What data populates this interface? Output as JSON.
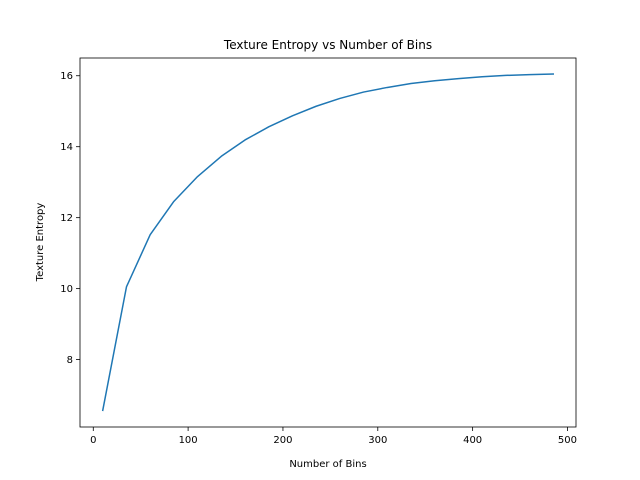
{
  "chart_data": {
    "type": "line",
    "title": "Texture Entropy vs Number of Bins",
    "xlabel": "Number of Bins",
    "ylabel": "Texture Entropy",
    "xlim": [
      -14,
      509
    ],
    "ylim": [
      6.1,
      16.5
    ],
    "x_ticks": [
      0,
      100,
      200,
      300,
      400,
      500
    ],
    "y_ticks": [
      8,
      10,
      12,
      14,
      16
    ],
    "grid": false,
    "legend": "none",
    "series": [
      {
        "color": "#1f77b4",
        "x": [
          10,
          35,
          60,
          85,
          110,
          135,
          160,
          185,
          210,
          235,
          260,
          285,
          310,
          335,
          360,
          385,
          410,
          435,
          460,
          485
        ],
        "y": [
          6.57,
          10.05,
          11.52,
          12.46,
          13.16,
          13.73,
          14.19,
          14.56,
          14.87,
          15.14,
          15.36,
          15.54,
          15.67,
          15.78,
          15.86,
          15.92,
          15.97,
          16.01,
          16.03,
          16.05
        ]
      }
    ]
  }
}
